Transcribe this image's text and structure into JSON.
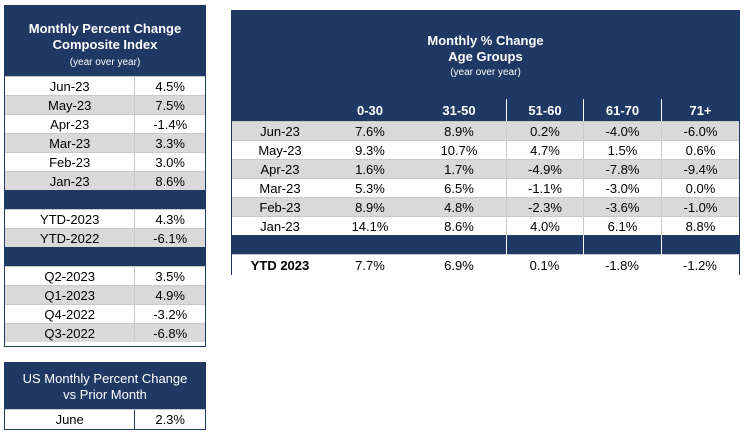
{
  "composite": {
    "title": "Monthly Percent Change",
    "title2": "Composite Index",
    "subtitle": "(year over year)",
    "months": [
      {
        "label": "Jun-23",
        "value": "4.5%"
      },
      {
        "label": "May-23",
        "value": "7.5%"
      },
      {
        "label": "Apr-23",
        "value": "-1.4%"
      },
      {
        "label": "Mar-23",
        "value": "3.3%"
      },
      {
        "label": "Feb-23",
        "value": "3.0%"
      },
      {
        "label": "Jan-23",
        "value": "8.6%"
      }
    ],
    "ytd": [
      {
        "label": "YTD-2023",
        "value": "4.3%"
      },
      {
        "label": "YTD-2022",
        "value": "-6.1%"
      }
    ],
    "quarters": [
      {
        "label": "Q2-2023",
        "value": "3.5%"
      },
      {
        "label": "Q1-2023",
        "value": "4.9%"
      },
      {
        "label": "Q4-2022",
        "value": "-3.2%"
      },
      {
        "label": "Q3-2022",
        "value": "-6.8%"
      }
    ]
  },
  "us": {
    "title": "US Monthly Percent Change",
    "title2": "vs Prior Month",
    "label": "June",
    "value": "2.3%"
  },
  "age": {
    "title": "Monthly % Change",
    "title2": "Age Groups",
    "subtitle": "(year over year)",
    "columns": [
      "0-30",
      "31-50",
      "51-60",
      "61-70",
      "71+"
    ],
    "rows": [
      {
        "label": "Jun-23",
        "values": [
          "7.6%",
          "8.9%",
          "0.2%",
          "-4.0%",
          "-6.0%"
        ]
      },
      {
        "label": "May-23",
        "values": [
          "9.3%",
          "10.7%",
          "4.7%",
          "1.5%",
          "0.6%"
        ]
      },
      {
        "label": "Apr-23",
        "values": [
          "1.6%",
          "1.7%",
          "-4.9%",
          "-7.8%",
          "-9.4%"
        ]
      },
      {
        "label": "Mar-23",
        "values": [
          "5.3%",
          "6.5%",
          "-1.1%",
          "-3.0%",
          "0.0%"
        ]
      },
      {
        "label": "Feb-23",
        "values": [
          "8.9%",
          "4.8%",
          "-2.3%",
          "-3.6%",
          "-1.0%"
        ]
      },
      {
        "label": "Jan-23",
        "values": [
          "14.1%",
          "8.6%",
          "4.0%",
          "6.1%",
          "8.8%"
        ]
      }
    ],
    "ytd": {
      "label": "YTD 2023",
      "values": [
        "7.7%",
        "6.9%",
        "0.1%",
        "-1.8%",
        "-1.2%"
      ]
    }
  }
}
